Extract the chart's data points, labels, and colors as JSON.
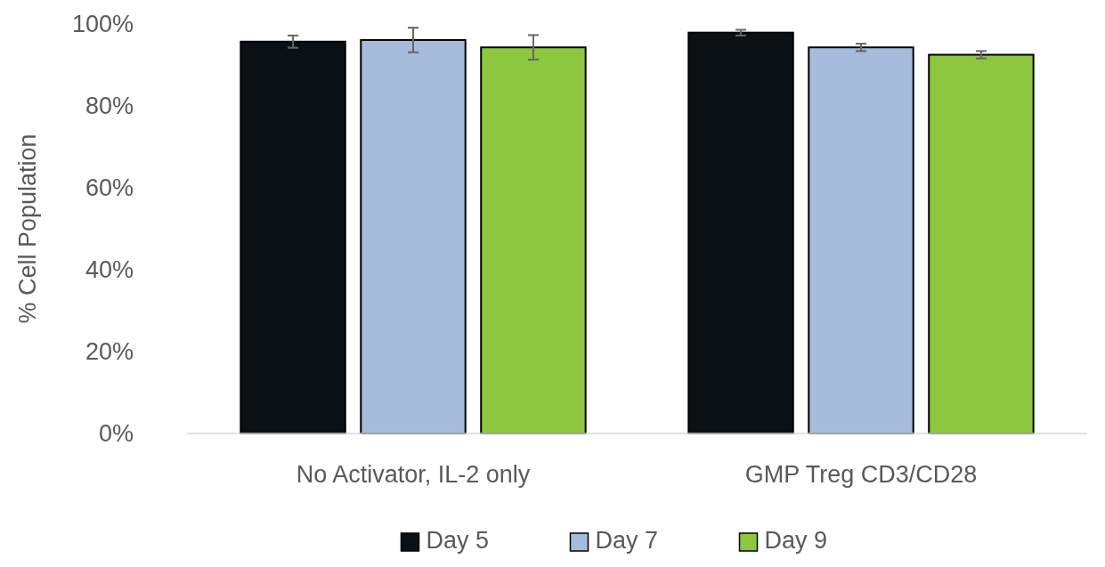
{
  "chart_data": {
    "type": "bar",
    "ylabel": "% Cell Population",
    "categories": [
      "No Activator, IL-2 only",
      "GMP Treg CD3/CD28"
    ],
    "series": [
      {
        "name": "Day 5",
        "color": "#0b1014",
        "values": [
          95.7,
          97.9
        ],
        "errors": [
          1.5,
          0.7
        ]
      },
      {
        "name": "Day 7",
        "color": "#a7bbdd",
        "values": [
          96.1,
          94.3
        ],
        "errors": [
          3,
          0.9
        ]
      },
      {
        "name": "Day 9",
        "color": "#8dc63f",
        "values": [
          94.3,
          92.5
        ],
        "errors": [
          3,
          0.9
        ]
      }
    ],
    "ylim": [
      0,
      100
    ],
    "yticks": [
      {
        "value": 0,
        "label": "0%"
      },
      {
        "value": 20,
        "label": "20%"
      },
      {
        "value": 40,
        "label": "40%"
      },
      {
        "value": 60,
        "label": "60%"
      },
      {
        "value": 80,
        "label": "80%"
      },
      {
        "value": 100,
        "label": "100%"
      }
    ],
    "grid": false,
    "legend": "bottom"
  }
}
